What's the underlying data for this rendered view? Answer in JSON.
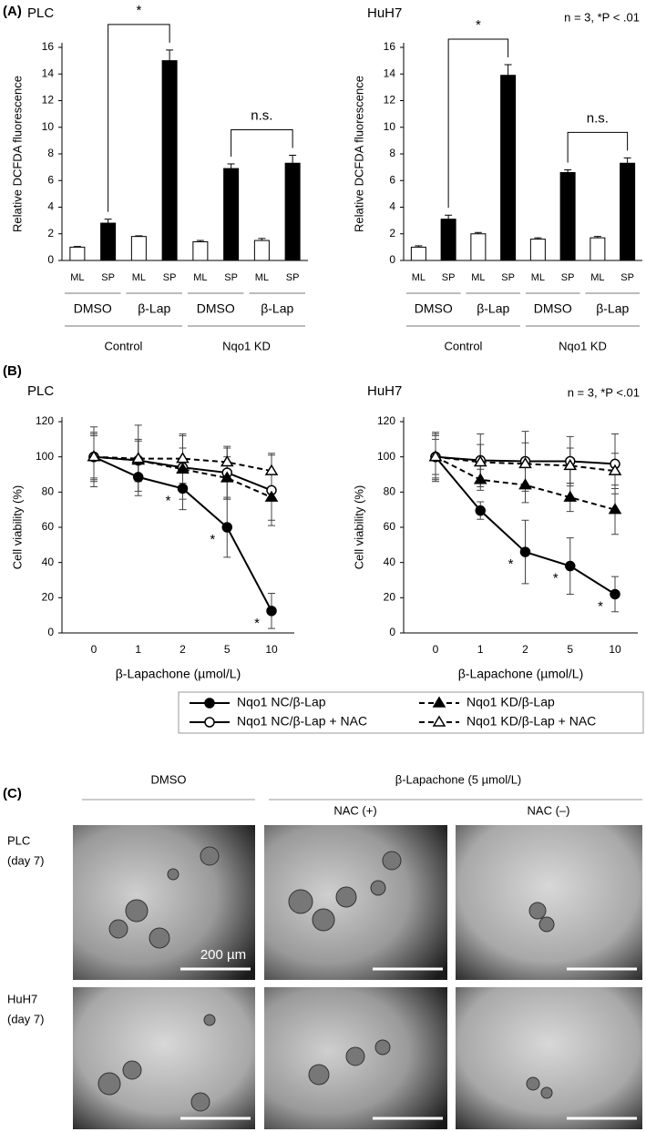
{
  "panel_labels": [
    "(A)",
    "(B)",
    "(C)"
  ],
  "chart_data": [
    {
      "type": "bar",
      "title": "PLC",
      "ylabel": "Relative DCFDA fluorescence",
      "categories": [
        "ML",
        "SP",
        "ML",
        "SP",
        "ML",
        "SP",
        "ML",
        "SP"
      ],
      "values": [
        1.0,
        2.8,
        1.8,
        15.0,
        1.4,
        6.9,
        1.5,
        7.3
      ],
      "errors": [
        0.05,
        0.3,
        0.05,
        0.8,
        0.1,
        0.35,
        0.15,
        0.6
      ],
      "colors": [
        "#ffffff",
        "#000000",
        "#ffffff",
        "#000000",
        "#ffffff",
        "#000000",
        "#ffffff",
        "#000000"
      ],
      "groups": [
        "DMSO",
        "β-Lap",
        "DMSO",
        "β-Lap"
      ],
      "supergroups": [
        "Control",
        "Nqo1 KD"
      ],
      "annotations": [
        {
          "text": "*",
          "from": 1,
          "to": 3
        },
        {
          "text": "n.s.",
          "from": 5,
          "to": 7
        }
      ],
      "ylim": [
        0,
        16
      ],
      "yticks": [
        0,
        2,
        4,
        6,
        8,
        10,
        12,
        14,
        16
      ]
    },
    {
      "type": "bar",
      "title": "HuH7",
      "ylabel": "Relative DCFDA fluorescence",
      "note": "n = 3, *P < .01",
      "categories": [
        "ML",
        "SP",
        "ML",
        "SP",
        "ML",
        "SP",
        "ML",
        "SP"
      ],
      "values": [
        1.0,
        3.1,
        2.0,
        13.9,
        1.6,
        6.6,
        1.7,
        7.3
      ],
      "errors": [
        0.1,
        0.3,
        0.1,
        0.8,
        0.1,
        0.2,
        0.1,
        0.4
      ],
      "colors": [
        "#ffffff",
        "#000000",
        "#ffffff",
        "#000000",
        "#ffffff",
        "#000000",
        "#ffffff",
        "#000000"
      ],
      "groups": [
        "DMSO",
        "β-Lap",
        "DMSO",
        "β-Lap"
      ],
      "supergroups": [
        "Control",
        "Nqo1 KD"
      ],
      "annotations": [
        {
          "text": "*",
          "from": 1,
          "to": 3
        },
        {
          "text": "n.s.",
          "from": 5,
          "to": 7
        }
      ],
      "ylim": [
        0,
        16
      ],
      "yticks": [
        0,
        2,
        4,
        6,
        8,
        10,
        12,
        14,
        16
      ]
    },
    {
      "type": "line",
      "title": "PLC",
      "ylabel": "Cell viability (%)",
      "xlabel": "β-Lapachone (µmol/L)",
      "categories": [
        "0",
        "1",
        "2",
        "5",
        "10"
      ],
      "series": [
        {
          "name": "Nqo1 NC/β-Lap",
          "color": "#000000",
          "marker": "circle",
          "fill": "filled",
          "dash": false,
          "values": [
            100,
            88.5,
            82,
            60,
            12.5
          ],
          "errors": [
            14,
            8,
            12,
            17,
            10
          ]
        },
        {
          "name": "Nqo1 NC/β-Lap + NAC",
          "color": "#000000",
          "marker": "circle",
          "fill": "open",
          "dash": false,
          "values": [
            100,
            98,
            94,
            91,
            81
          ],
          "errors": [
            17,
            20,
            18,
            15,
            20
          ]
        },
        {
          "name": "Nqo1 KD/β-Lap",
          "color": "#000000",
          "marker": "triangle",
          "fill": "filled",
          "dash": true,
          "values": [
            100,
            98,
            93,
            88,
            77
          ],
          "errors": [
            13,
            12,
            12,
            12,
            13
          ]
        },
        {
          "name": "Nqo1 KD/β-Lap + NAC",
          "color": "#000000",
          "marker": "triangle",
          "fill": "open",
          "dash": true,
          "values": [
            100,
            99,
            99,
            97,
            92
          ],
          "errors": [
            12,
            10,
            14,
            8,
            10
          ]
        }
      ],
      "annotations": [
        {
          "text": "*",
          "index": 2
        },
        {
          "text": "*",
          "index": 3
        },
        {
          "text": "*",
          "index": 4
        }
      ],
      "legend": "bottom",
      "ylim": [
        0,
        120
      ],
      "yticks": [
        0,
        20,
        40,
        60,
        80,
        100,
        120
      ]
    },
    {
      "type": "line",
      "title": "HuH7",
      "ylabel": "Cell viability (%)",
      "xlabel": "β-Lapachone (µmol/L)",
      "note": "n = 3, *P <.01",
      "categories": [
        "0",
        "1",
        "2",
        "5",
        "10"
      ],
      "series": [
        {
          "name": "Nqo1 NC/β-Lap",
          "color": "#000000",
          "marker": "circle",
          "fill": "filled",
          "dash": false,
          "values": [
            100,
            69.5,
            46,
            38,
            22
          ],
          "errors": [
            14,
            5,
            18,
            16,
            10
          ]
        },
        {
          "name": "Nqo1 NC/β-Lap + NAC",
          "color": "#000000",
          "marker": "circle",
          "fill": "open",
          "dash": false,
          "values": [
            100,
            98,
            97.5,
            97.5,
            96
          ],
          "errors": [
            13,
            15,
            17,
            14,
            17
          ]
        },
        {
          "name": "Nqo1 KD/β-Lap",
          "color": "#000000",
          "marker": "triangle",
          "fill": "filled",
          "dash": true,
          "values": [
            100,
            87,
            84,
            77,
            70
          ],
          "errors": [
            12,
            6,
            10,
            8,
            14
          ]
        },
        {
          "name": "Nqo1 KD/β-Lap + NAC",
          "color": "#000000",
          "marker": "triangle",
          "fill": "open",
          "dash": true,
          "values": [
            100,
            97,
            96,
            95,
            92
          ],
          "errors": [
            10,
            10,
            12,
            10,
            10
          ]
        }
      ],
      "annotations": [
        {
          "text": "*",
          "index": 2
        },
        {
          "text": "*",
          "index": 3
        },
        {
          "text": "*",
          "index": 4
        }
      ],
      "ylim": [
        0,
        120
      ],
      "yticks": [
        0,
        20,
        40,
        60,
        80,
        100,
        120
      ]
    }
  ],
  "panel_c": {
    "col_dmso": "DMSO",
    "col_blap": "β-Lapachone (5 µmol/L)",
    "nac_plus": "NAC (+)",
    "nac_minus": "NAC (–)",
    "row_labels": [
      [
        "PLC",
        "(day 7)"
      ],
      [
        "HuH7",
        "(day 7)"
      ]
    ],
    "scale_bar": "200 µm"
  }
}
